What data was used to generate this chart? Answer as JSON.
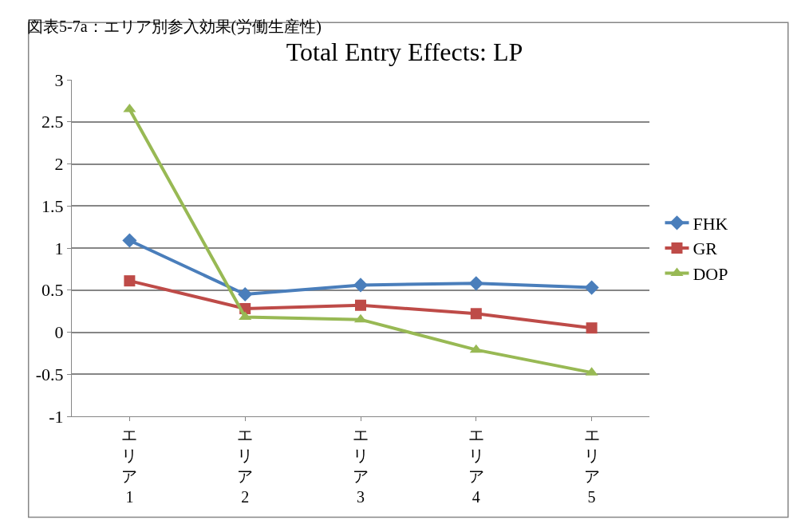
{
  "chart_data": {
    "type": "line",
    "title": "Total Entry Effects: LP",
    "annotations": [
      "図表5-7a：エリア別参入効果(労働生産性)"
    ],
    "categories": [
      "エリア1",
      "エリア2",
      "エリア3",
      "エリア4",
      "エリア5"
    ],
    "series": [
      {
        "name": "FHK",
        "color": "#4a7ebb",
        "marker": "diamond",
        "values": [
          1.09,
          0.45,
          0.56,
          0.58,
          0.53
        ]
      },
      {
        "name": "GR",
        "color": "#be4b48",
        "marker": "square",
        "values": [
          0.61,
          0.28,
          0.32,
          0.22,
          0.05
        ]
      },
      {
        "name": "DOP",
        "color": "#98b954",
        "marker": "triangle",
        "values": [
          2.65,
          0.18,
          0.15,
          -0.21,
          -0.48
        ]
      }
    ],
    "ylim": [
      -1,
      3
    ],
    "yticks": [
      -1,
      {
        "value": -0.5,
        "label": "-0.5"
      },
      0,
      0.5,
      1,
      1.5,
      2,
      2.5,
      3
    ],
    "grid": "y",
    "legend": "right",
    "line_style": "solid"
  }
}
